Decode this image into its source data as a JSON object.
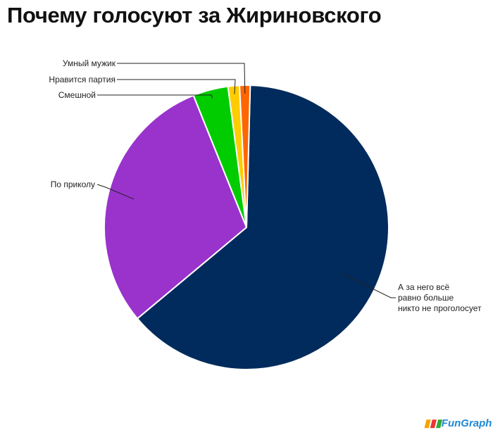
{
  "chart_data": {
    "type": "pie",
    "title": "Почему голосуют за Жириновского",
    "slices": [
      {
        "label": "А за него всё равно больше никто не проголосует",
        "value": 63.5,
        "color": "#002b5c"
      },
      {
        "label": "По приколу",
        "value": 30.0,
        "color": "#9933cc"
      },
      {
        "label": "Смешной",
        "value": 4.0,
        "color": "#00cc00"
      },
      {
        "label": "Нравится партия",
        "value": 1.3,
        "color": "#ffcc00"
      },
      {
        "label": "Умный мужик",
        "value": 1.2,
        "color": "#ff6600"
      }
    ]
  },
  "logo": "FunGraph"
}
